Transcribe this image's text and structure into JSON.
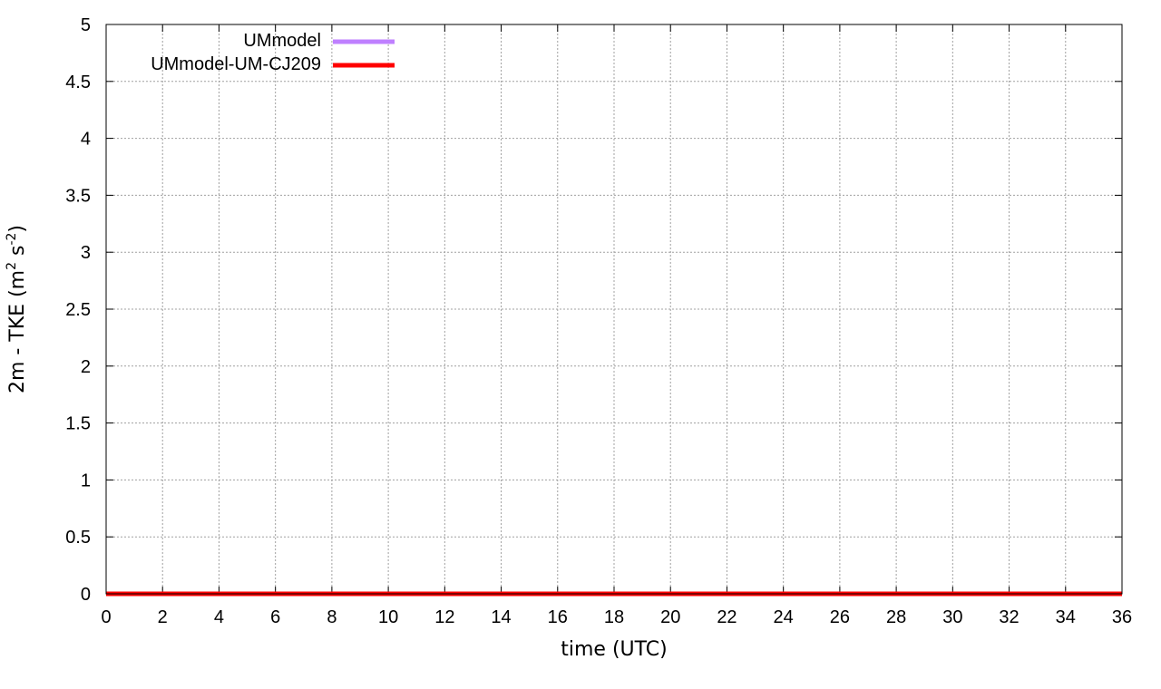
{
  "chart_data": {
    "type": "line",
    "title": "",
    "xlabel": "time (UTC)",
    "ylabel_main": "2m - TKE (m",
    "ylabel_sup1": "2",
    "ylabel_mid": " s",
    "ylabel_sup2": "-2",
    "ylabel_end": ")",
    "xlim": [
      0,
      36
    ],
    "ylim": [
      0,
      5
    ],
    "xticks": [
      0,
      2,
      4,
      6,
      8,
      10,
      12,
      14,
      16,
      18,
      20,
      22,
      24,
      26,
      28,
      30,
      32,
      34,
      36
    ],
    "yticks": [
      0,
      0.5,
      1,
      1.5,
      2,
      2.5,
      3,
      3.5,
      4,
      4.5,
      5
    ],
    "grid": true,
    "legend_position": "top-left",
    "series": [
      {
        "name": "UMmodel",
        "color": "#bf80ff",
        "x": [
          0,
          36
        ],
        "y": [
          0,
          0
        ]
      },
      {
        "name": "UMmodel-UM-CJ209",
        "color": "#ff0000",
        "x": [
          0,
          36
        ],
        "y": [
          0,
          0
        ]
      }
    ]
  }
}
